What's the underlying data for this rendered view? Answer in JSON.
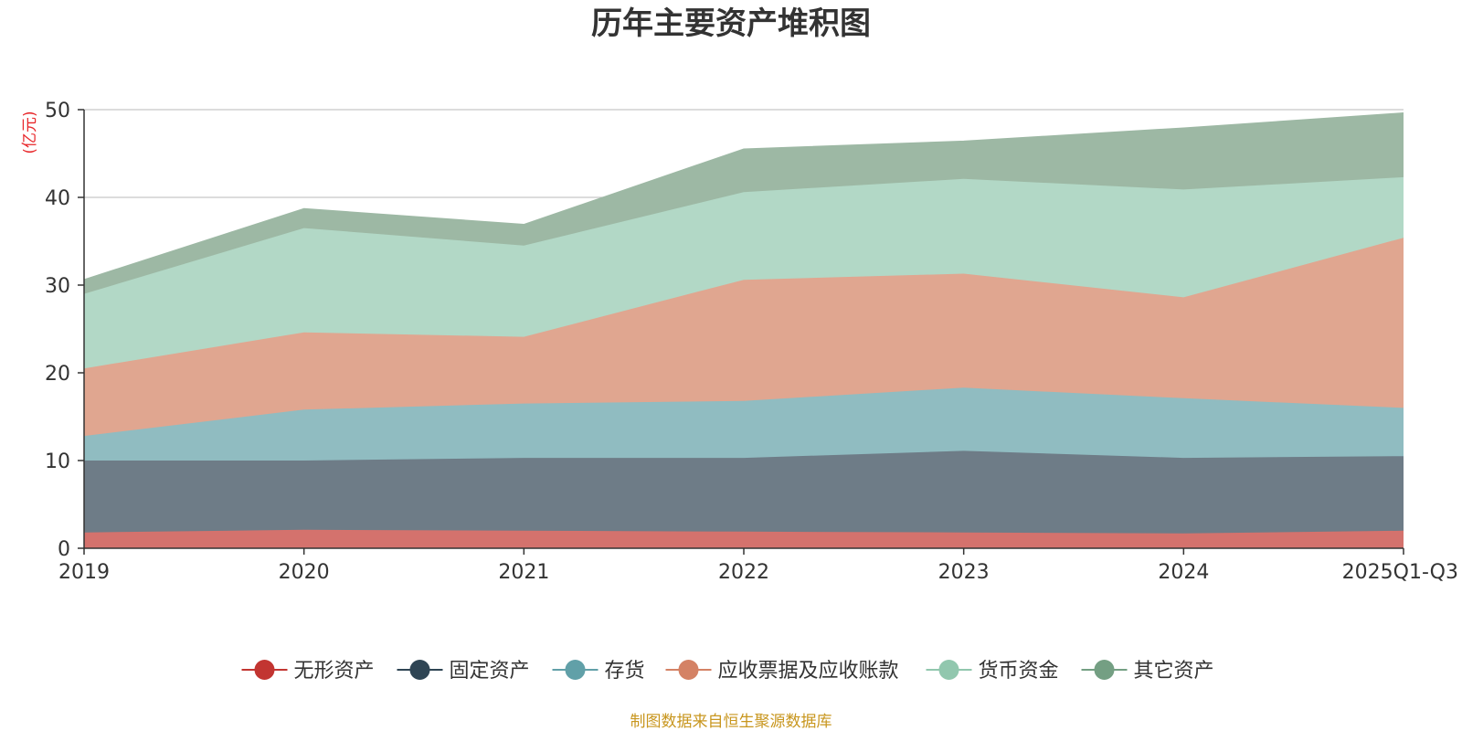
{
  "chart_data": {
    "type": "area",
    "stacked": true,
    "title": "历年主要资产堆积图",
    "ylabel": "(亿元)",
    "xlabel": "",
    "categories": [
      "2019",
      "2020",
      "2021",
      "2022",
      "2023",
      "2024",
      "2025Q1-Q3"
    ],
    "ylim": [
      0,
      50
    ],
    "yticks": [
      0,
      10,
      20,
      30,
      40,
      50
    ],
    "series": [
      {
        "name": "无形资产",
        "color": "#c23531",
        "fill": "#d4726d",
        "values": [
          1.8,
          2.1,
          2.0,
          1.9,
          1.8,
          1.7,
          2.0
        ]
      },
      {
        "name": "固定资产",
        "color": "#2f4554",
        "fill": "#6e7c87",
        "values": [
          8.2,
          7.9,
          8.3,
          8.4,
          9.3,
          8.6,
          8.5
        ]
      },
      {
        "name": "存货",
        "color": "#61a0a8",
        "fill": "#90bcc1",
        "values": [
          2.8,
          5.8,
          6.2,
          6.5,
          7.2,
          6.8,
          5.5
        ]
      },
      {
        "name": "应收票据及应收账款",
        "color": "#d48265",
        "fill": "#e0a690",
        "values": [
          7.7,
          8.8,
          7.6,
          13.8,
          13.0,
          11.5,
          19.4
        ]
      },
      {
        "name": "货币资金",
        "color": "#91c7ae",
        "fill": "#b2d8c6",
        "values": [
          8.5,
          11.9,
          10.4,
          10.0,
          10.8,
          12.3,
          6.9
        ]
      },
      {
        "name": "其它资产",
        "color": "#749f83",
        "fill": "#9db8a4",
        "values": [
          1.6,
          2.2,
          2.4,
          4.9,
          4.3,
          7.0,
          7.3
        ]
      }
    ],
    "grid": true,
    "legend_position": "bottom"
  },
  "source_note": "制图数据来自恒生聚源数据库"
}
